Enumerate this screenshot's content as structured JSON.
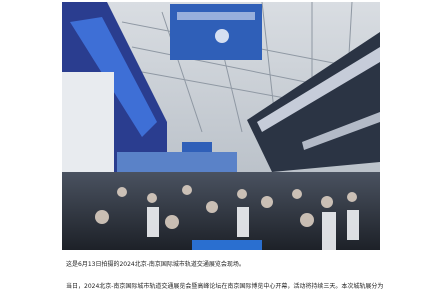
{
  "caption": "这是6月13日拍摄的2024北京-南京国际城市轨道交通展览会现场。",
  "paragraph": "当日，2024北京-南京国际城市轨道交通展览会暨高峰论坛在南京国际博览中心开幕，活动将持续三天。本次城轨展分为"
}
